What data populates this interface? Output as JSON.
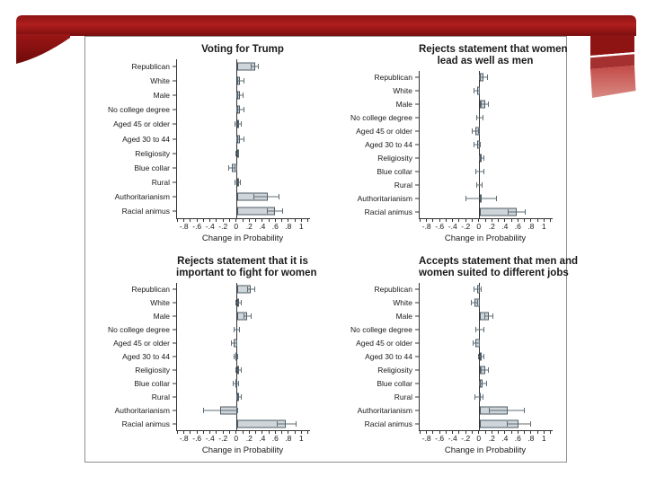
{
  "theme": {
    "band_red_top": "#8e1414",
    "band_red_mid": "#b01e1e",
    "band_red_deep": "#7a0e0e",
    "ribbon_red_mid": "#a53030",
    "ribbon_red_light_top": "#c24a46",
    "ribbon_red_light_bottom": "#d98a84",
    "box_border": "#8f8f8f",
    "bar_fill": "#cfd5d9",
    "bar_border": "#4d5c66",
    "whisker": "#5f6d76",
    "axis": "#333333",
    "text": "#1a1a1a"
  },
  "chart_data": [
    {
      "type": "bar",
      "orientation": "horizontal",
      "error_bars": true,
      "title": "Voting for Trump",
      "title_lines": [
        "Voting for Trump"
      ],
      "categories": [
        "Republican",
        "White",
        "Male",
        "No college degree",
        "Aged 45 or older",
        "Aged 30 to 44",
        "Religiosity",
        "Blue collar",
        "Rural",
        "Authoritarianism",
        "Racial animus"
      ],
      "values": [
        0.28,
        0.05,
        0.05,
        0.05,
        0.02,
        0.05,
        0.01,
        -0.08,
        0.01,
        0.47,
        0.58
      ],
      "ci_low": [
        0.22,
        0.01,
        0.0,
        -0.01,
        -0.03,
        -0.01,
        -0.02,
        -0.13,
        -0.03,
        0.26,
        0.47
      ],
      "ci_high": [
        0.33,
        0.1,
        0.09,
        0.1,
        0.07,
        0.1,
        0.03,
        -0.03,
        0.05,
        0.65,
        0.7
      ],
      "xlabel": "Change in Probability",
      "xlim": [
        -0.92,
        1.12
      ],
      "xtick_values": [
        -0.8,
        -0.6,
        -0.4,
        -0.2,
        0,
        0.2,
        0.4,
        0.6,
        0.8,
        1
      ],
      "xtick_labels": [
        "-.8",
        "-.6",
        "-.4",
        "-.2",
        "0",
        ".2",
        ".4",
        ".6",
        ".8",
        "1"
      ],
      "minor_tick_step": 0.1,
      "minor_tick_range": [
        -0.9,
        1.1
      ]
    },
    {
      "type": "bar",
      "orientation": "horizontal",
      "error_bars": true,
      "title": "Rejects statement that women lead as well as men",
      "title_lines": [
        "Rejects statement that women",
        "lead as well as men"
      ],
      "categories": [
        "Republican",
        "White",
        "Male",
        "No college degree",
        "Aged 45 or older",
        "Aged 30 to 44",
        "Religiosity",
        "Blue collar",
        "Rural",
        "Authoritarianism",
        "Racial animus"
      ],
      "values": [
        0.06,
        -0.04,
        0.08,
        0.0,
        -0.07,
        -0.04,
        0.03,
        0.0,
        0.0,
        0.01,
        0.57
      ],
      "ci_low": [
        -0.01,
        -0.08,
        0.03,
        -0.05,
        -0.12,
        -0.08,
        0.0,
        -0.06,
        -0.04,
        -0.21,
        0.44
      ],
      "ci_high": [
        0.12,
        0.0,
        0.13,
        0.05,
        -0.02,
        0.01,
        0.06,
        0.06,
        0.04,
        0.26,
        0.7
      ],
      "xlabel": "Change in Probability",
      "xlim": [
        -0.92,
        1.12
      ],
      "xtick_values": [
        -0.8,
        -0.6,
        -0.4,
        -0.2,
        0,
        0.2,
        0.4,
        0.6,
        0.8,
        1
      ],
      "xtick_labels": [
        "-.8",
        "-.6",
        "-.4",
        "-.2",
        "0",
        ".2",
        ".4",
        ".6",
        ".8",
        "1"
      ],
      "minor_tick_step": 0.1,
      "minor_tick_range": [
        -0.9,
        1.1
      ]
    },
    {
      "type": "bar",
      "orientation": "horizontal",
      "error_bars": true,
      "title": "Rejects statement that it is important to fight for women",
      "title_lines": [
        "Rejects statement that it is",
        "important to fight for women"
      ],
      "categories": [
        "Republican",
        "White",
        "Male",
        "No college degree",
        "Aged 45 or older",
        "Aged 30 to 44",
        "Religiosity",
        "Blue collar",
        "Rural",
        "Authoritarianism",
        "Racial animus"
      ],
      "values": [
        0.21,
        0.02,
        0.16,
        0.0,
        -0.05,
        -0.02,
        0.02,
        -0.02,
        0.03,
        -0.26,
        0.75
      ],
      "ci_low": [
        0.16,
        -0.02,
        0.11,
        -0.04,
        -0.09,
        -0.05,
        -0.02,
        -0.06,
        -0.01,
        -0.52,
        0.61
      ],
      "ci_high": [
        0.27,
        0.06,
        0.22,
        0.04,
        -0.01,
        0.01,
        0.06,
        0.02,
        0.07,
        0.01,
        0.9
      ],
      "xlabel": "Change in Probability",
      "xlim": [
        -0.92,
        1.12
      ],
      "xtick_values": [
        -0.8,
        -0.6,
        -0.4,
        -0.2,
        0,
        0.2,
        0.4,
        0.6,
        0.8,
        1
      ],
      "xtick_labels": [
        "-.8",
        "-.6",
        "-.4",
        "-.2",
        "0",
        ".2",
        ".4",
        ".6",
        ".8",
        "1"
      ],
      "minor_tick_step": 0.1,
      "minor_tick_range": [
        -0.9,
        1.1
      ]
    },
    {
      "type": "bar",
      "orientation": "horizontal",
      "error_bars": true,
      "title": "Accepts statement that men and women suited to different jobs",
      "title_lines": [
        "Accepts statement that men and",
        "women suited to different jobs"
      ],
      "categories": [
        "Republican",
        "White",
        "Male",
        "No college degree",
        "Aged 45 or older",
        "Aged 30 to 44",
        "Religiosity",
        "Blue collar",
        "Rural",
        "Authoritarianism",
        "Racial animus"
      ],
      "values": [
        -0.04,
        -0.08,
        0.14,
        0.0,
        -0.06,
        0.02,
        0.08,
        0.04,
        -0.01,
        0.43,
        0.6
      ],
      "ci_low": [
        -0.09,
        -0.13,
        0.08,
        -0.06,
        -0.1,
        -0.02,
        0.03,
        -0.01,
        -0.07,
        0.15,
        0.42
      ],
      "ci_high": [
        0.02,
        -0.03,
        0.2,
        0.06,
        -0.01,
        0.07,
        0.13,
        0.1,
        0.05,
        0.68,
        0.78
      ],
      "xlabel": "Change in Probability",
      "xlim": [
        -0.92,
        1.12
      ],
      "xtick_values": [
        -0.8,
        -0.6,
        -0.4,
        -0.2,
        0,
        0.2,
        0.4,
        0.6,
        0.8,
        1
      ],
      "xtick_labels": [
        "-.8",
        "-.6",
        "-.4",
        "-.2",
        "0",
        ".2",
        ".4",
        ".6",
        ".8",
        "1"
      ],
      "minor_tick_step": 0.1,
      "minor_tick_range": [
        -0.9,
        1.1
      ]
    }
  ]
}
